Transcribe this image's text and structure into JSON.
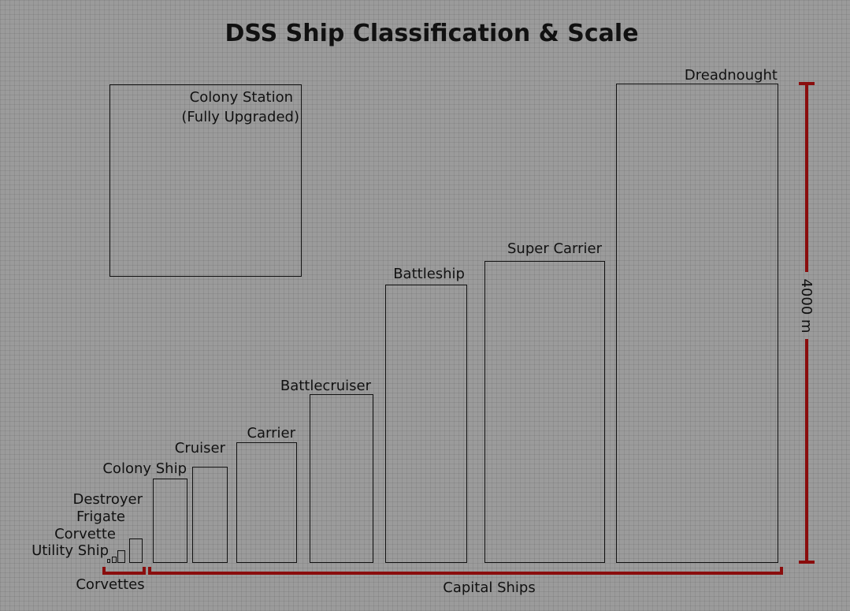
{
  "title": "DSS Ship Classification & Scale",
  "ships": {
    "utility_ship": "Utility Ship",
    "corvette": "Corvette",
    "frigate": "Frigate",
    "destroyer": "Destroyer",
    "colony_ship": "Colony Ship",
    "cruiser": "Cruiser",
    "carrier": "Carrier",
    "battlecruiser": "Battlecruiser",
    "battleship": "Battleship",
    "super_carrier": "Super Carrier",
    "dreadnought": "Dreadnought",
    "colony_station_line1": "Colony Station",
    "colony_station_line2": "(Fully Upgraded)"
  },
  "groups": {
    "corvettes": "Corvettes",
    "capital_ships": "Capital Ships"
  },
  "scale": {
    "label": "4000 m",
    "meters": 4000
  },
  "colors": {
    "background": "#9b9b9b",
    "bracket": "#8a0d0d",
    "outline": "#111111"
  }
}
